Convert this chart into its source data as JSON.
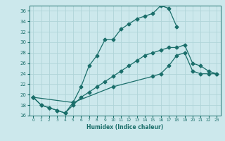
{
  "xlabel": "Humidex (Indice chaleur)",
  "background_color": "#cce8ec",
  "grid_color": "#b0d4d8",
  "line_color": "#1a6e6a",
  "xlim": [
    -0.5,
    23.5
  ],
  "ylim": [
    16,
    37
  ],
  "yticks": [
    16,
    18,
    20,
    22,
    24,
    26,
    28,
    30,
    32,
    34,
    36
  ],
  "xticks": [
    0,
    1,
    2,
    3,
    4,
    5,
    6,
    7,
    8,
    9,
    10,
    11,
    12,
    13,
    14,
    15,
    16,
    17,
    18,
    19,
    20,
    21,
    22,
    23
  ],
  "line1_x": [
    0,
    1,
    2,
    3,
    4,
    5,
    6,
    7,
    8,
    9,
    10,
    11,
    12,
    13,
    14,
    15,
    16,
    17,
    18
  ],
  "line1_y": [
    19.5,
    18.0,
    17.5,
    17.0,
    16.5,
    18.5,
    21.5,
    25.5,
    27.5,
    30.5,
    30.5,
    32.5,
    33.5,
    34.5,
    35.0,
    35.5,
    37.0,
    36.5,
    33.0
  ],
  "line2_x": [
    0,
    1,
    2,
    3,
    4,
    5,
    6,
    7,
    8,
    9,
    10,
    11,
    12,
    13,
    14,
    15,
    16,
    17,
    18,
    19,
    20,
    21,
    22,
    23
  ],
  "line2_y": [
    19.5,
    18.0,
    17.5,
    17.0,
    16.5,
    18.0,
    19.5,
    20.5,
    21.5,
    22.5,
    23.5,
    24.5,
    25.5,
    26.5,
    27.5,
    28.0,
    28.5,
    29.0,
    29.0,
    29.5,
    26.0,
    25.5,
    24.5,
    24.0
  ],
  "line3_x": [
    0,
    5,
    10,
    15,
    16,
    17,
    18,
    19,
    20,
    21,
    22,
    23
  ],
  "line3_y": [
    19.5,
    18.5,
    21.5,
    23.5,
    24.0,
    25.5,
    27.5,
    28.0,
    24.5,
    24.0,
    24.0,
    24.0
  ]
}
